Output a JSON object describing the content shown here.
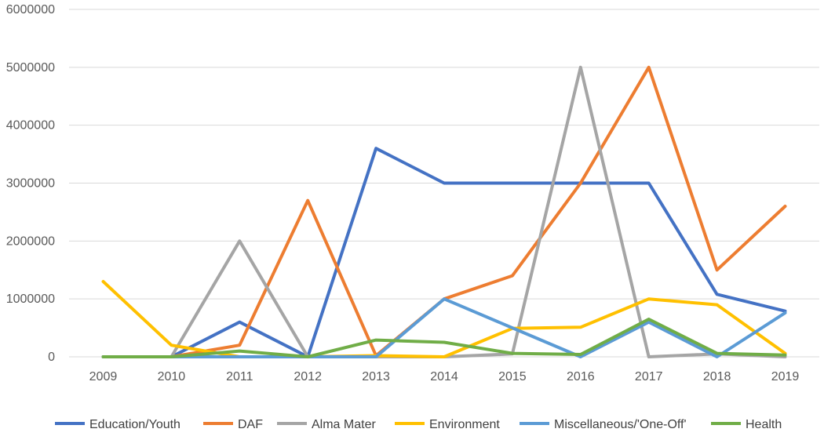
{
  "chart_data": {
    "type": "line",
    "categories": [
      "2009",
      "2010",
      "2011",
      "2012",
      "2013",
      "2014",
      "2015",
      "2016",
      "2017",
      "2018",
      "2019"
    ],
    "ylim": [
      0,
      6000000
    ],
    "yticks": [
      "0",
      "1000000",
      "2000000",
      "3000000",
      "4000000",
      "5000000",
      "6000000"
    ],
    "grid": "horizontal",
    "legend_position": "bottom",
    "title": "",
    "xlabel": "",
    "ylabel": "",
    "series": [
      {
        "name": "Education/Youth",
        "color": "#4472C4",
        "values": [
          0,
          0,
          600000,
          0,
          3600000,
          3000000,
          3000000,
          3000000,
          3000000,
          1080000,
          790000
        ]
      },
      {
        "name": "DAF",
        "color": "#ED7D31",
        "values": [
          0,
          0,
          200000,
          2700000,
          20000,
          1000000,
          1400000,
          3000000,
          5000000,
          1500000,
          2600000
        ]
      },
      {
        "name": "Alma Mater",
        "color": "#A5A5A5",
        "values": [
          0,
          0,
          2000000,
          0,
          0,
          0,
          50000,
          5000000,
          0,
          50000,
          0
        ]
      },
      {
        "name": "Environment",
        "color": "#FFC000",
        "values": [
          1300000,
          200000,
          0,
          0,
          20000,
          0,
          490000,
          510000,
          1000000,
          900000,
          60000
        ]
      },
      {
        "name": "Miscellaneous/'One-Off'",
        "color": "#5B9BD5",
        "values": [
          0,
          0,
          0,
          0,
          0,
          1000000,
          500000,
          0,
          600000,
          0,
          760000
        ]
      },
      {
        "name": "Health",
        "color": "#70AD47",
        "values": [
          0,
          0,
          100000,
          0,
          290000,
          250000,
          60000,
          40000,
          650000,
          60000,
          30000
        ]
      }
    ]
  }
}
